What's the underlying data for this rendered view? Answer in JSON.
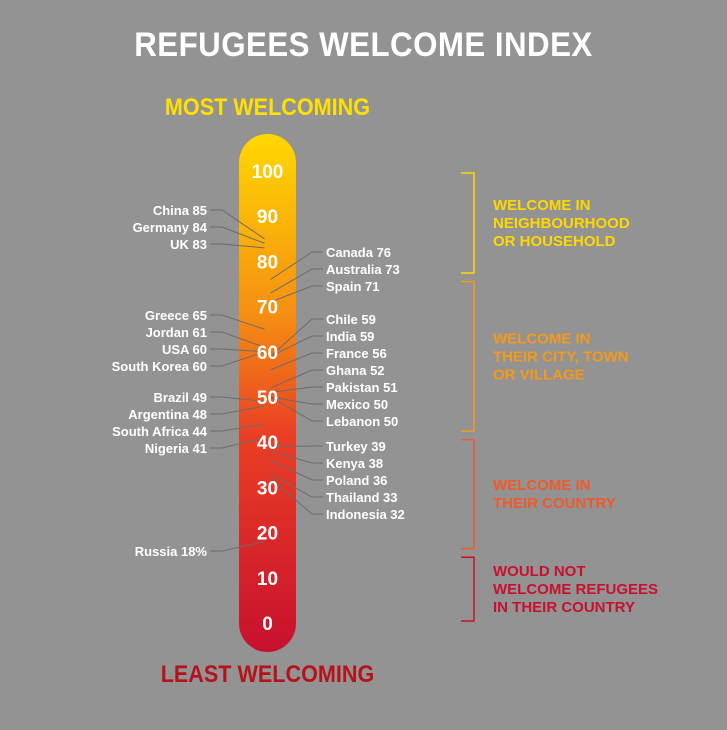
{
  "title": "REFUGEES WELCOME INDEX",
  "top_label": "MOST WELCOMING",
  "bottom_label": "LEAST WELCOMING",
  "chart_data": {
    "type": "thermometer",
    "title": "REFUGEES WELCOME INDEX",
    "ylim": [
      0,
      100
    ],
    "ticks": [
      0,
      10,
      20,
      30,
      40,
      50,
      60,
      70,
      80,
      90,
      100
    ],
    "gradient_colors": [
      "#c8102e",
      "#ea3f24",
      "#f58e12",
      "#ffd800"
    ],
    "left_entries": [
      {
        "label": "China 85",
        "value": 85
      },
      {
        "label": "Germany 84",
        "value": 84
      },
      {
        "label": "UK 83",
        "value": 83
      },
      {
        "label": "Greece 65",
        "value": 65
      },
      {
        "label": "Jordan 61",
        "value": 61
      },
      {
        "label": "USA 60",
        "value": 60
      },
      {
        "label": "South Korea 60",
        "value": 60
      },
      {
        "label": "Brazil 49",
        "value": 49
      },
      {
        "label": "Argentina 48",
        "value": 48
      },
      {
        "label": "South Africa 44",
        "value": 44
      },
      {
        "label": "Nigeria 41",
        "value": 41
      },
      {
        "label": "Russia 18%",
        "value": 18
      }
    ],
    "right_entries": [
      {
        "label": "Canada 76",
        "value": 76
      },
      {
        "label": "Australia 73",
        "value": 73
      },
      {
        "label": "Spain 71",
        "value": 71
      },
      {
        "label": "Chile 59",
        "value": 59
      },
      {
        "label": "India 59",
        "value": 59
      },
      {
        "label": "France 56",
        "value": 56
      },
      {
        "label": "Ghana 52",
        "value": 52
      },
      {
        "label": "Pakistan 51",
        "value": 51
      },
      {
        "label": "Mexico 50",
        "value": 50
      },
      {
        "label": "Lebanon 50",
        "value": 50
      },
      {
        "label": "Turkey 39",
        "value": 39
      },
      {
        "label": "Kenya 38",
        "value": 38
      },
      {
        "label": "Poland 36",
        "value": 36
      },
      {
        "label": "Thailand 33",
        "value": 33
      },
      {
        "label": "Indonesia 32",
        "value": 32
      }
    ],
    "bands": [
      {
        "lines": [
          "WELCOME IN",
          "NEIGHBOURHOOD",
          "OR HOUSEHOLD"
        ],
        "color": "#ffd800",
        "from": 77,
        "to": 100
      },
      {
        "lines": [
          "WELCOME IN",
          "THEIR CITY, TOWN",
          "OR VILLAGE"
        ],
        "color": "#f39a1c",
        "from": 42,
        "to": 76
      },
      {
        "lines": [
          "WELCOME IN",
          "THEIR COUNTRY"
        ],
        "color": "#ef5a2a",
        "from": 16,
        "to": 41
      },
      {
        "lines": [
          "WOULD NOT",
          "WELCOME REFUGEES",
          "IN THEIR COUNTRY"
        ],
        "color": "#c8102e",
        "from": 0,
        "to": 15
      }
    ]
  }
}
